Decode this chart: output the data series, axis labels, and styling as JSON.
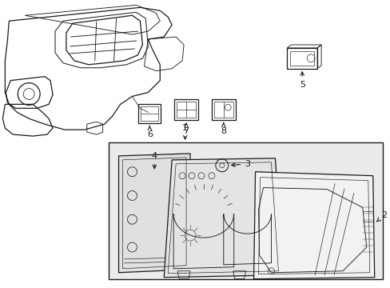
{
  "bg_color": "#ffffff",
  "line_color": "#1a1a1a",
  "gray_fill": "#e8e8e8",
  "fig_width": 4.89,
  "fig_height": 3.6,
  "dpi": 100
}
